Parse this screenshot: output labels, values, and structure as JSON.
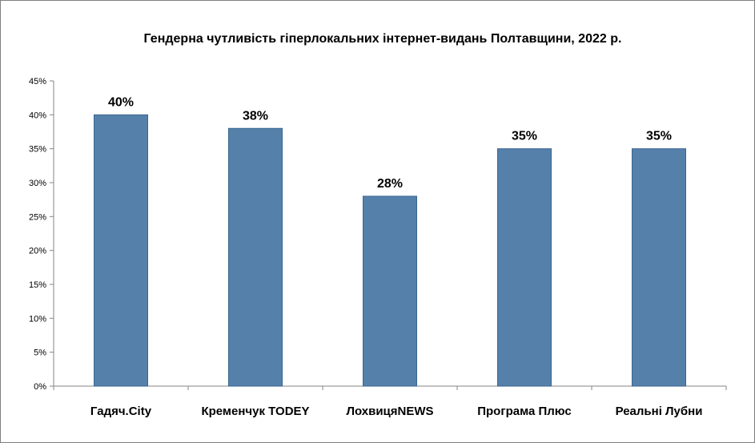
{
  "chart_data": {
    "type": "bar",
    "title": "Гендерна чутливість гіперлокальних інтернет-видань Полтавщини, 2022 р.",
    "categories": [
      "Гадяч.City",
      "Кременчук TODEY",
      "ЛохвицяNEWS",
      "Програма Плюс",
      "Реальні Лубни"
    ],
    "values": [
      40,
      38,
      28,
      35,
      35
    ],
    "data_labels": [
      "40%",
      "38%",
      "28%",
      "35%",
      "35%"
    ],
    "ylim": [
      0,
      45
    ],
    "yticks": [
      0,
      5,
      10,
      15,
      20,
      25,
      30,
      35,
      40,
      45
    ],
    "ytick_labels": [
      "0%",
      "5%",
      "10%",
      "15%",
      "20%",
      "25%",
      "30%",
      "35%",
      "40%",
      "45%"
    ],
    "grid": false,
    "legend": "none",
    "bar_color": "#5580aa",
    "bar_edge_color": "#3b6591"
  }
}
